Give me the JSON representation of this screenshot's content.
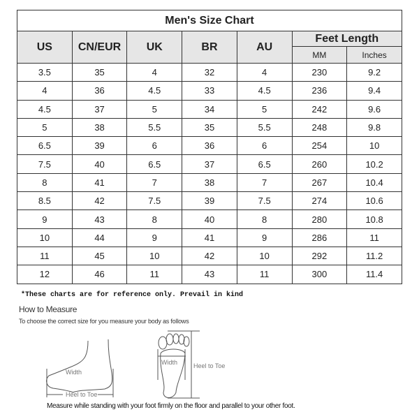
{
  "title": "Men's Size Chart",
  "headers": [
    "US",
    "CN/EUR",
    "UK",
    "BR",
    "AU"
  ],
  "feet_length": {
    "label": "Feet Length",
    "sub": [
      "MM",
      "Inches"
    ]
  },
  "rows": [
    [
      "3.5",
      "35",
      "4",
      "32",
      "4",
      "230",
      "9.2"
    ],
    [
      "4",
      "36",
      "4.5",
      "33",
      "4.5",
      "236",
      "9.4"
    ],
    [
      "4.5",
      "37",
      "5",
      "34",
      "5",
      "242",
      "9.6"
    ],
    [
      "5",
      "38",
      "5.5",
      "35",
      "5.5",
      "248",
      "9.8"
    ],
    [
      "6.5",
      "39",
      "6",
      "36",
      "6",
      "254",
      "10"
    ],
    [
      "7.5",
      "40",
      "6.5",
      "37",
      "6.5",
      "260",
      "10.2"
    ],
    [
      "8",
      "41",
      "7",
      "38",
      "7",
      "267",
      "10.4"
    ],
    [
      "8.5",
      "42",
      "7.5",
      "39",
      "7.5",
      "274",
      "10.6"
    ],
    [
      "9",
      "43",
      "8",
      "40",
      "8",
      "280",
      "10.8"
    ],
    [
      "10",
      "44",
      "9",
      "41",
      "9",
      "286",
      "11"
    ],
    [
      "11",
      "45",
      "10",
      "42",
      "10",
      "292",
      "11.2"
    ],
    [
      "12",
      "46",
      "11",
      "43",
      "11",
      "300",
      "11.4"
    ]
  ],
  "note": "*These charts are for reference only. Prevail in kind",
  "how_to": {
    "title": "How to Measure",
    "subtitle": "To choose the correct size for you measure your body as follows",
    "side_width": "Width",
    "side_length": "Heel to Toe",
    "top_width": "Width",
    "top_length": "Heel to Toe",
    "caption": "Measure while standing with your foot firmly on the floor and parallel to your other foot."
  }
}
